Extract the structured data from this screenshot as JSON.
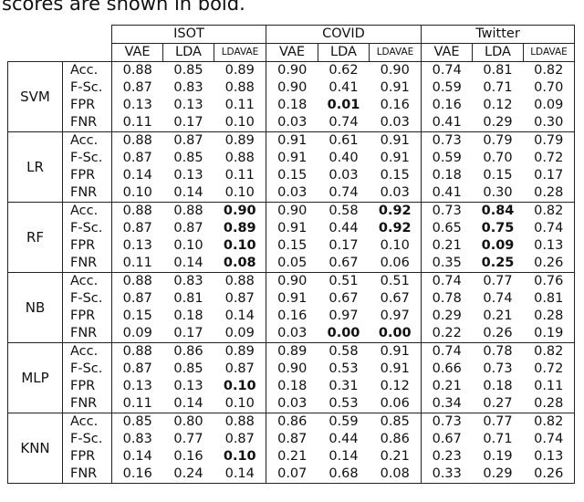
{
  "caption_fragment": "scores are shown in bold.",
  "table": {
    "groups": [
      "ISOT",
      "COVID",
      "Twitter"
    ],
    "columns": [
      "VAE",
      "LDA",
      "LDAVAE"
    ],
    "metrics": [
      "Acc.",
      "F-Sc.",
      "FPR",
      "FNR"
    ],
    "classifiers": [
      {
        "name": "SVM",
        "rows": [
          [
            "0.88",
            "0.85",
            "0.89",
            "0.90",
            "0.62",
            "0.90",
            "0.74",
            "0.81",
            "0.82"
          ],
          [
            "0.87",
            "0.83",
            "0.88",
            "0.90",
            "0.41",
            "0.91",
            "0.59",
            "0.71",
            "0.70"
          ],
          [
            "0.13",
            "0.13",
            "0.11",
            "0.18",
            "0.01",
            "0.16",
            "0.16",
            "0.12",
            "0.09"
          ],
          [
            "0.11",
            "0.17",
            "0.10",
            "0.03",
            "0.74",
            "0.03",
            "0.41",
            "0.29",
            "0.30"
          ]
        ]
      },
      {
        "name": "LR",
        "rows": [
          [
            "0.88",
            "0.87",
            "0.89",
            "0.91",
            "0.61",
            "0.91",
            "0.73",
            "0.79",
            "0.79"
          ],
          [
            "0.87",
            "0.85",
            "0.88",
            "0.91",
            "0.40",
            "0.91",
            "0.59",
            "0.70",
            "0.72"
          ],
          [
            "0.14",
            "0.13",
            "0.11",
            "0.15",
            "0.03",
            "0.15",
            "0.18",
            "0.15",
            "0.17"
          ],
          [
            "0.10",
            "0.14",
            "0.10",
            "0.03",
            "0.74",
            "0.03",
            "0.41",
            "0.30",
            "0.28"
          ]
        ]
      },
      {
        "name": "RF",
        "rows": [
          [
            "0.88",
            "0.88",
            "0.90",
            "0.90",
            "0.58",
            "0.92",
            "0.73",
            "0.84",
            "0.82"
          ],
          [
            "0.87",
            "0.87",
            "0.89",
            "0.91",
            "0.44",
            "0.92",
            "0.65",
            "0.75",
            "0.74"
          ],
          [
            "0.13",
            "0.10",
            "0.10",
            "0.15",
            "0.17",
            "0.10",
            "0.21",
            "0.09",
            "0.13"
          ],
          [
            "0.11",
            "0.14",
            "0.08",
            "0.05",
            "0.67",
            "0.06",
            "0.35",
            "0.25",
            "0.26"
          ]
        ]
      },
      {
        "name": "NB",
        "rows": [
          [
            "0.88",
            "0.83",
            "0.88",
            "0.90",
            "0.51",
            "0.51",
            "0.74",
            "0.77",
            "0.76"
          ],
          [
            "0.87",
            "0.81",
            "0.87",
            "0.91",
            "0.67",
            "0.67",
            "0.78",
            "0.74",
            "0.81"
          ],
          [
            "0.15",
            "0.18",
            "0.14",
            "0.16",
            "0.97",
            "0.97",
            "0.29",
            "0.21",
            "0.28"
          ],
          [
            "0.09",
            "0.17",
            "0.09",
            "0.03",
            "0.00",
            "0.00",
            "0.22",
            "0.26",
            "0.19"
          ]
        ]
      },
      {
        "name": "MLP",
        "rows": [
          [
            "0.88",
            "0.86",
            "0.89",
            "0.89",
            "0.58",
            "0.91",
            "0.74",
            "0.78",
            "0.82"
          ],
          [
            "0.87",
            "0.85",
            "0.87",
            "0.90",
            "0.53",
            "0.91",
            "0.66",
            "0.73",
            "0.72"
          ],
          [
            "0.13",
            "0.13",
            "0.10",
            "0.18",
            "0.31",
            "0.12",
            "0.21",
            "0.18",
            "0.11"
          ],
          [
            "0.11",
            "0.14",
            "0.10",
            "0.03",
            "0.53",
            "0.06",
            "0.34",
            "0.27",
            "0.28"
          ]
        ]
      },
      {
        "name": "KNN",
        "rows": [
          [
            "0.85",
            "0.80",
            "0.88",
            "0.86",
            "0.59",
            "0.85",
            "0.73",
            "0.77",
            "0.82"
          ],
          [
            "0.83",
            "0.77",
            "0.87",
            "0.87",
            "0.44",
            "0.86",
            "0.67",
            "0.71",
            "0.74"
          ],
          [
            "0.14",
            "0.16",
            "0.10",
            "0.21",
            "0.14",
            "0.21",
            "0.23",
            "0.19",
            "0.13"
          ],
          [
            "0.16",
            "0.24",
            "0.14",
            "0.07",
            "0.68",
            "0.08",
            "0.33",
            "0.29",
            "0.26"
          ]
        ]
      }
    ],
    "bold": [
      [
        0,
        2,
        4
      ],
      [
        2,
        0,
        2
      ],
      [
        2,
        0,
        5
      ],
      [
        2,
        0,
        7
      ],
      [
        2,
        1,
        2
      ],
      [
        2,
        1,
        5
      ],
      [
        2,
        1,
        7
      ],
      [
        2,
        2,
        2
      ],
      [
        2,
        2,
        7
      ],
      [
        2,
        3,
        2
      ],
      [
        2,
        3,
        7
      ],
      [
        3,
        3,
        4
      ],
      [
        3,
        3,
        5
      ],
      [
        4,
        2,
        2
      ],
      [
        5,
        2,
        2
      ]
    ]
  }
}
